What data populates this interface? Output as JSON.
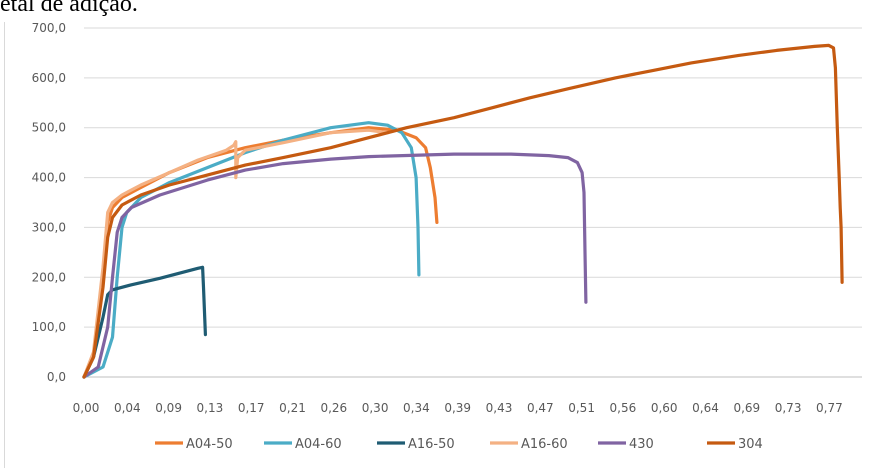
{
  "caption": "etal de adição.",
  "chart_data": {
    "type": "line",
    "title": "",
    "xlabel": "",
    "ylabel": "",
    "xlim": [
      0,
      0.82
    ],
    "ylim": [
      0,
      700
    ],
    "grid": true,
    "legend_position": "bottom",
    "x_ticks": [
      "0,00",
      "0,04",
      "0,09",
      "0,13",
      "0,17",
      "0,21",
      "0,26",
      "0,30",
      "0,34",
      "0,39",
      "0,43",
      "0,47",
      "0,51",
      "0,56",
      "0,60",
      "0,64",
      "0,69",
      "0,73",
      "0,77"
    ],
    "y_ticks": [
      "0,0",
      "100,0",
      "200,0",
      "300,0",
      "400,0",
      "500,0",
      "600,0",
      "700,0"
    ],
    "series": [
      {
        "name": "A04-50",
        "color": "#ed7d31",
        "points": [
          [
            0.0,
            0
          ],
          [
            0.01,
            40
          ],
          [
            0.02,
            200
          ],
          [
            0.025,
            310
          ],
          [
            0.03,
            340
          ],
          [
            0.04,
            360
          ],
          [
            0.06,
            380
          ],
          [
            0.09,
            410
          ],
          [
            0.13,
            440
          ],
          [
            0.17,
            460
          ],
          [
            0.21,
            475
          ],
          [
            0.26,
            490
          ],
          [
            0.3,
            500
          ],
          [
            0.33,
            495
          ],
          [
            0.35,
            480
          ],
          [
            0.36,
            460
          ],
          [
            0.365,
            420
          ],
          [
            0.37,
            360
          ],
          [
            0.372,
            310
          ]
        ]
      },
      {
        "name": "A04-60",
        "color": "#4bacc6",
        "points": [
          [
            0.0,
            0
          ],
          [
            0.02,
            20
          ],
          [
            0.03,
            80
          ],
          [
            0.035,
            200
          ],
          [
            0.04,
            300
          ],
          [
            0.045,
            330
          ],
          [
            0.06,
            360
          ],
          [
            0.09,
            390
          ],
          [
            0.13,
            420
          ],
          [
            0.17,
            450
          ],
          [
            0.21,
            475
          ],
          [
            0.26,
            500
          ],
          [
            0.3,
            510
          ],
          [
            0.32,
            505
          ],
          [
            0.335,
            490
          ],
          [
            0.345,
            460
          ],
          [
            0.35,
            400
          ],
          [
            0.352,
            300
          ],
          [
            0.353,
            205
          ]
        ]
      },
      {
        "name": "A16-50",
        "color": "#1f5c73",
        "points": [
          [
            0.0,
            0
          ],
          [
            0.01,
            40
          ],
          [
            0.02,
            120
          ],
          [
            0.025,
            165
          ],
          [
            0.03,
            175
          ],
          [
            0.05,
            185
          ],
          [
            0.08,
            198
          ],
          [
            0.1,
            208
          ],
          [
            0.12,
            218
          ],
          [
            0.125,
            220
          ],
          [
            0.126,
            180
          ],
          [
            0.127,
            130
          ],
          [
            0.128,
            85
          ]
        ]
      },
      {
        "name": "A16-60",
        "color": "#f4b183",
        "points": [
          [
            0.0,
            0
          ],
          [
            0.01,
            50
          ],
          [
            0.02,
            220
          ],
          [
            0.025,
            330
          ],
          [
            0.03,
            350
          ],
          [
            0.04,
            365
          ],
          [
            0.06,
            385
          ],
          [
            0.09,
            410
          ],
          [
            0.12,
            435
          ],
          [
            0.15,
            455
          ],
          [
            0.158,
            465
          ],
          [
            0.16,
            472
          ],
          [
            0.16,
            400
          ],
          [
            0.162,
            440
          ],
          [
            0.17,
            455
          ],
          [
            0.21,
            470
          ],
          [
            0.26,
            490
          ],
          [
            0.3,
            495
          ],
          [
            0.32,
            490
          ]
        ]
      },
      {
        "name": "430",
        "color": "#8064a2",
        "points": [
          [
            0.0,
            0
          ],
          [
            0.015,
            20
          ],
          [
            0.025,
            100
          ],
          [
            0.03,
            200
          ],
          [
            0.035,
            290
          ],
          [
            0.04,
            320
          ],
          [
            0.05,
            340
          ],
          [
            0.08,
            365
          ],
          [
            0.13,
            395
          ],
          [
            0.17,
            415
          ],
          [
            0.21,
            428
          ],
          [
            0.26,
            437
          ],
          [
            0.3,
            442
          ],
          [
            0.39,
            447
          ],
          [
            0.45,
            447
          ],
          [
            0.49,
            444
          ],
          [
            0.51,
            440
          ],
          [
            0.52,
            430
          ],
          [
            0.525,
            410
          ],
          [
            0.527,
            370
          ],
          [
            0.528,
            250
          ],
          [
            0.529,
            150
          ]
        ]
      },
      {
        "name": "304",
        "color": "#c55a11",
        "points": [
          [
            0.0,
            0
          ],
          [
            0.01,
            40
          ],
          [
            0.02,
            180
          ],
          [
            0.025,
            280
          ],
          [
            0.03,
            320
          ],
          [
            0.04,
            345
          ],
          [
            0.06,
            365
          ],
          [
            0.09,
            385
          ],
          [
            0.13,
            405
          ],
          [
            0.17,
            425
          ],
          [
            0.21,
            440
          ],
          [
            0.26,
            460
          ],
          [
            0.3,
            480
          ],
          [
            0.34,
            500
          ],
          [
            0.39,
            520
          ],
          [
            0.43,
            540
          ],
          [
            0.47,
            560
          ],
          [
            0.51,
            578
          ],
          [
            0.56,
            600
          ],
          [
            0.6,
            615
          ],
          [
            0.64,
            630
          ],
          [
            0.69,
            645
          ],
          [
            0.73,
            655
          ],
          [
            0.77,
            663
          ],
          [
            0.785,
            665
          ],
          [
            0.79,
            660
          ],
          [
            0.792,
            620
          ],
          [
            0.794,
            500
          ],
          [
            0.796,
            400
          ],
          [
            0.797,
            340
          ],
          [
            0.798,
            300
          ],
          [
            0.799,
            190
          ]
        ]
      }
    ]
  }
}
